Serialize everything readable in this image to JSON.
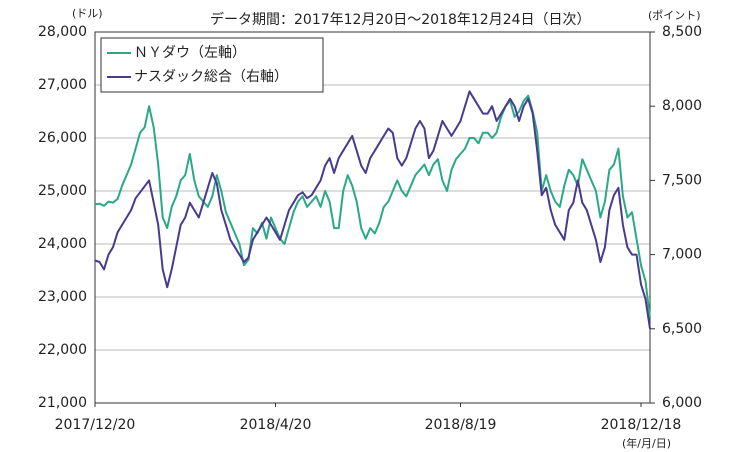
{
  "chart_data": {
    "type": "line",
    "title": "データ期間：2017年12月20日～2018年12月24日（日次）",
    "y_unit": "(ドル)",
    "y2_unit": "(ポイント)",
    "x_unit": "(年/月/日)",
    "categories": [
      "2017/12/20",
      null,
      null,
      null,
      null,
      null,
      null,
      null,
      null,
      null,
      null,
      null,
      null,
      null,
      null,
      null,
      null,
      null,
      null,
      null,
      null,
      null,
      null,
      null,
      null,
      null,
      null,
      null,
      null,
      null,
      null,
      null,
      null,
      null,
      null,
      null,
      null,
      null,
      null,
      null,
      "2018/4/20",
      null,
      null,
      null,
      null,
      null,
      null,
      null,
      null,
      null,
      null,
      null,
      null,
      null,
      null,
      null,
      null,
      null,
      null,
      null,
      null,
      null,
      null,
      null,
      null,
      null,
      null,
      null,
      null,
      null,
      null,
      null,
      null,
      null,
      null,
      null,
      null,
      null,
      null,
      null,
      null,
      "2018/8/19",
      null,
      null,
      null,
      null,
      null,
      null,
      null,
      null,
      null,
      null,
      null,
      null,
      null,
      null,
      null,
      null,
      null,
      null,
      null,
      null,
      null,
      null,
      null,
      null,
      null,
      null,
      null,
      null,
      null,
      null,
      null,
      null,
      null,
      null,
      null,
      null,
      null,
      null,
      null,
      "2018/12/18",
      null,
      null
    ],
    "series": [
      {
        "name": "ＮＹダウ（左軸）",
        "color": "#2aa987",
        "axis": "y",
        "values": [
          24750,
          24760,
          24720,
          24800,
          24780,
          24850,
          25100,
          25300,
          25500,
          25800,
          26100,
          26200,
          26600,
          26200,
          25500,
          24500,
          24300,
          24700,
          24900,
          25200,
          25300,
          25700,
          25200,
          24900,
          24800,
          24700,
          24900,
          25300,
          25000,
          24600,
          24400,
          24200,
          24000,
          23600,
          23700,
          24300,
          24200,
          24400,
          24100,
          24500,
          24300,
          24100,
          24000,
          24300,
          24600,
          24800,
          24900,
          24700,
          24800,
          24900,
          24700,
          25000,
          24800,
          24300,
          24300,
          25000,
          25300,
          25100,
          24800,
          24300,
          24100,
          24300,
          24200,
          24400,
          24700,
          24800,
          25000,
          25200,
          25000,
          24900,
          25100,
          25300,
          25400,
          25500,
          25300,
          25500,
          25600,
          25200,
          25000,
          25400,
          25600,
          25700,
          25800,
          26000,
          26000,
          25900,
          26100,
          26100,
          26000,
          26100,
          26400,
          26600,
          26700,
          26400,
          26500,
          26700,
          26800,
          26500,
          26100,
          25000,
          25300,
          25000,
          24800,
          24700,
          25100,
          25400,
          25300,
          25100,
          25600,
          25400,
          25200,
          25000,
          24500,
          24800,
          25400,
          25500,
          25800,
          24900,
          24500,
          24600,
          24100,
          23600,
          23300,
          22600
        ]
      },
      {
        "name": "ナスダック総合（右軸）",
        "color": "#4a3a8e",
        "axis": "y2",
        "values": [
          6960,
          6950,
          6900,
          7000,
          7050,
          7150,
          7200,
          7250,
          7300,
          7380,
          7420,
          7460,
          7500,
          7350,
          7200,
          6900,
          6780,
          6900,
          7050,
          7200,
          7250,
          7350,
          7300,
          7250,
          7350,
          7450,
          7550,
          7480,
          7300,
          7200,
          7100,
          7050,
          7000,
          6950,
          6980,
          7100,
          7150,
          7200,
          7250,
          7200,
          7150,
          7100,
          7200,
          7300,
          7350,
          7400,
          7420,
          7380,
          7400,
          7450,
          7500,
          7600,
          7650,
          7550,
          7650,
          7700,
          7750,
          7800,
          7700,
          7600,
          7550,
          7650,
          7700,
          7750,
          7800,
          7850,
          7820,
          7650,
          7600,
          7650,
          7750,
          7850,
          7900,
          7850,
          7650,
          7700,
          7800,
          7900,
          7850,
          7800,
          7850,
          7900,
          8000,
          8100,
          8050,
          8000,
          7950,
          7950,
          8000,
          7900,
          7950,
          8000,
          8050,
          8000,
          7900,
          8000,
          8050,
          7950,
          7700,
          7400,
          7450,
          7300,
          7200,
          7150,
          7100,
          7300,
          7350,
          7500,
          7350,
          7300,
          7200,
          7100,
          6950,
          7050,
          7300,
          7400,
          7450,
          7200,
          7050,
          7000,
          7000,
          6800,
          6700,
          6500
        ]
      }
    ],
    "ylim": [
      21000,
      28000
    ],
    "yticks": [
      {
        "value": 21000,
        "label": "21,000"
      },
      {
        "value": 22000,
        "label": "22,000"
      },
      {
        "value": 23000,
        "label": "23,000"
      },
      {
        "value": 24000,
        "label": "24,000"
      },
      {
        "value": 25000,
        "label": "25,000"
      },
      {
        "value": 26000,
        "label": "26,000"
      },
      {
        "value": 27000,
        "label": "27,000"
      },
      {
        "value": 28000,
        "label": "28,000"
      }
    ],
    "y2lim": [
      6000,
      8500
    ],
    "y2ticks": [
      {
        "value": 6000,
        "label": "6,000"
      },
      {
        "value": 6500,
        "label": "6,500"
      },
      {
        "value": 7000,
        "label": "7,000"
      },
      {
        "value": 7500,
        "label": "7,500"
      },
      {
        "value": 8000,
        "label": "8,000"
      },
      {
        "value": 8500,
        "label": "8,500"
      }
    ],
    "grid": true,
    "legend": "upper left"
  }
}
